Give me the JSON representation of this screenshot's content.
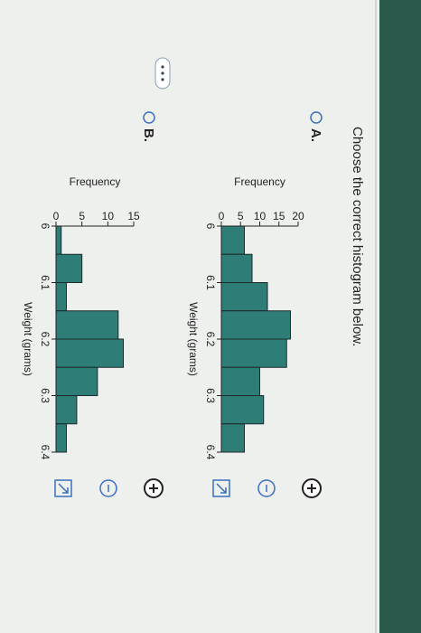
{
  "question": "Choose the correct histogram below.",
  "options": [
    {
      "label": "A.",
      "chart_data": {
        "type": "histogram",
        "xlabel": "Weight (grams)",
        "ylabel": "Frequency",
        "color": "#2f7d77",
        "bins": [
          6,
          6.05,
          6.1,
          6.15,
          6.2,
          6.25,
          6.3,
          6.35,
          6.4
        ],
        "counts": [
          6,
          8,
          12,
          18,
          17,
          10,
          11,
          6
        ],
        "xlim": [
          6,
          6.4
        ],
        "xticks": [
          6,
          6.1,
          6.2,
          6.3,
          6.4
        ],
        "ylim": [
          0,
          20
        ],
        "yticks": [
          0,
          5,
          10,
          15,
          20
        ]
      }
    },
    {
      "label": "B.",
      "chart_data": {
        "type": "histogram",
        "xlabel": "Weight (grams)",
        "ylabel": "Frequency",
        "color": "#2f7d77",
        "bins": [
          6,
          6.05,
          6.1,
          6.15,
          6.2,
          6.25,
          6.3,
          6.35,
          6.4
        ],
        "counts": [
          1,
          5,
          2,
          12,
          13,
          8,
          4,
          2
        ],
        "xlim": [
          6,
          6.4
        ],
        "xticks": [
          6,
          6.1,
          6.2,
          6.3,
          6.4
        ],
        "ylim": [
          0,
          15
        ],
        "yticks": [
          0,
          5,
          10,
          15
        ]
      }
    }
  ]
}
